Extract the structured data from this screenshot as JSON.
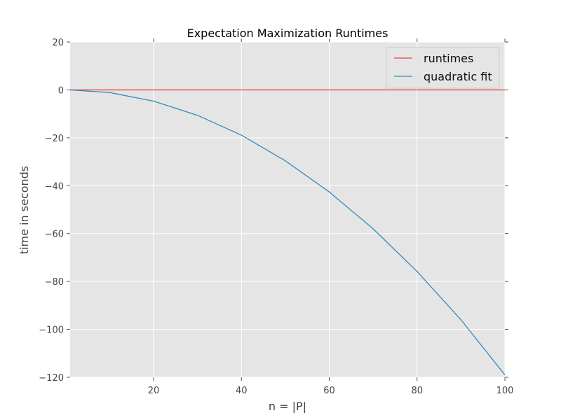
{
  "chart_data": {
    "type": "line",
    "title": "Expectation Maximization Runtimes",
    "xlabel": "n = |P|",
    "ylabel": "time in seconds",
    "xlim": [
      1,
      100
    ],
    "ylim": [
      -120,
      20
    ],
    "xticks": [
      20,
      40,
      60,
      80,
      100
    ],
    "xtick_labels": [
      "20",
      "40",
      "60",
      "80",
      "100"
    ],
    "yticks": [
      20,
      0,
      -20,
      -40,
      -60,
      -80,
      -100,
      -120
    ],
    "ytick_labels": [
      "20",
      "0",
      "−20",
      "−40",
      "−60",
      "−80",
      "−100",
      "−120"
    ],
    "grid": true,
    "legend_position": "top-right",
    "background_color": "#e5e5e5",
    "series": [
      {
        "name": "runtimes",
        "color": "#e24a33",
        "x": [
          1,
          100
        ],
        "y": [
          0,
          0
        ]
      },
      {
        "name": "quadratic fit",
        "color": "#348abd",
        "x": [
          1,
          10,
          20,
          30,
          40,
          50,
          60,
          70,
          80,
          90,
          100
        ],
        "y": [
          0,
          -1.1,
          -4.7,
          -10.6,
          -18.9,
          -29.6,
          -42.6,
          -58.0,
          -75.8,
          -96.0,
          -119.0
        ]
      }
    ]
  }
}
